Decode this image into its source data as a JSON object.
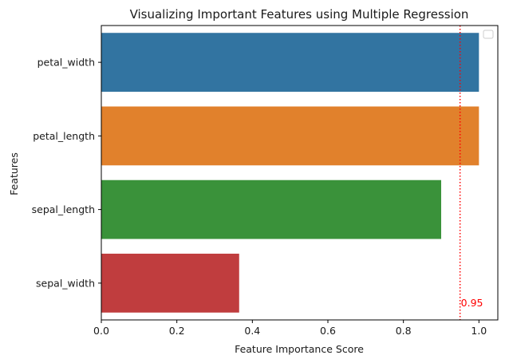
{
  "chart_data": {
    "type": "bar",
    "orientation": "horizontal",
    "title": "Visualizing Important Features using Multiple Regression",
    "xlabel": "Feature Importance Score",
    "ylabel": "Features",
    "xlim": [
      0,
      1.05
    ],
    "xticks": [
      0.0,
      0.2,
      0.4,
      0.6,
      0.8,
      1.0
    ],
    "xtick_labels": [
      "0.0",
      "0.2",
      "0.4",
      "0.6",
      "0.8",
      "1.0"
    ],
    "categories": [
      "petal_width",
      "petal_length",
      "sepal_length",
      "sepal_width"
    ],
    "values": [
      1.0,
      1.0,
      0.9,
      0.365
    ],
    "colors": [
      "#3274a1",
      "#e1812c",
      "#3a923a",
      "#c03d3e"
    ],
    "reference_line": {
      "value": 0.95,
      "label": "0.95",
      "color": "#ff0000",
      "style": "dotted"
    },
    "legend": {
      "placement": "top-right",
      "entries": []
    },
    "grid": false
  }
}
